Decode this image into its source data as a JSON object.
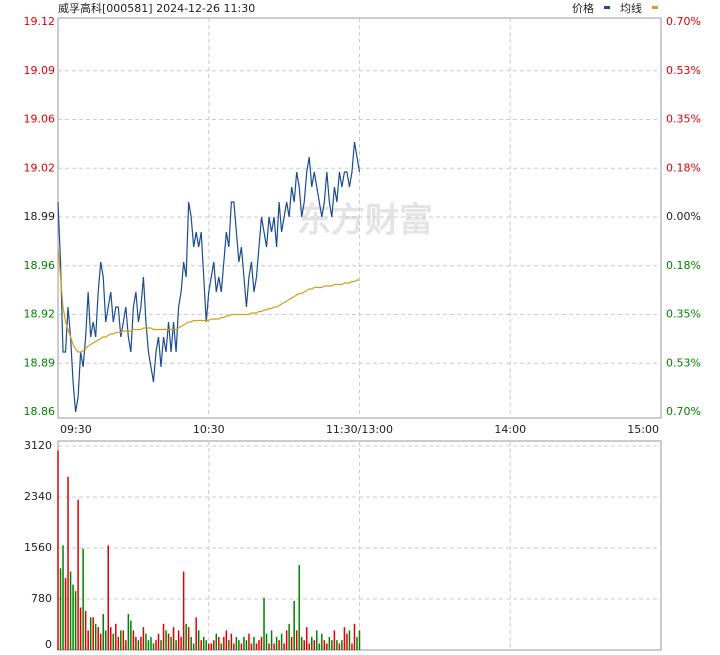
{
  "chart_data": [
    {
      "type": "line",
      "title": "威孚高科[000581] 2024-12-26 11:30",
      "watermark": "东方财富",
      "legend": "top-right",
      "grid": true,
      "up_color": "#e00000",
      "down_color": "#008000",
      "xlim": [
        0,
        240
      ],
      "xticks": [
        {
          "value": 0,
          "label": "09:30"
        },
        {
          "value": 60,
          "label": "10:30"
        },
        {
          "value": 120,
          "label": "11:30/13:00"
        },
        {
          "value": 180,
          "label": "14:00"
        },
        {
          "value": 240,
          "label": "15:00"
        }
      ],
      "ylim": [
        18.86,
        19.12
      ],
      "yticks": [
        {
          "value": 19.12,
          "label": "19.12"
        },
        {
          "value": 19.0875,
          "label": "19.09"
        },
        {
          "value": 19.055,
          "label": "19.06"
        },
        {
          "value": 19.0225,
          "label": "19.02"
        },
        {
          "value": 18.99,
          "label": "18.99"
        },
        {
          "value": 18.9575,
          "label": "18.96"
        },
        {
          "value": 18.925,
          "label": "18.92"
        },
        {
          "value": 18.8925,
          "label": "18.89"
        },
        {
          "value": 18.86,
          "label": "18.86"
        }
      ],
      "y2lim": [
        -0.7,
        0.7
      ],
      "y2ticks": [
        {
          "value": 0.7,
          "label": "0.70%"
        },
        {
          "value": 0.525,
          "label": "0.53%"
        },
        {
          "value": 0.35,
          "label": "0.35%"
        },
        {
          "value": 0.175,
          "label": "0.18%"
        },
        {
          "value": 0,
          "label": "0.00%"
        },
        {
          "value": -0.175,
          "label": "0.18%"
        },
        {
          "value": -0.35,
          "label": "0.35%"
        },
        {
          "value": -0.525,
          "label": "0.53%"
        },
        {
          "value": -0.7,
          "label": "0.70%"
        }
      ],
      "series": [
        {
          "name": "价格",
          "color": "#1a4d8f",
          "values": [
            19.0,
            18.96,
            18.9,
            18.9,
            18.93,
            18.91,
            18.88,
            18.86,
            18.87,
            18.9,
            18.89,
            18.91,
            18.94,
            18.91,
            18.92,
            18.91,
            18.94,
            18.96,
            18.95,
            18.92,
            18.93,
            18.94,
            18.92,
            18.93,
            18.93,
            18.91,
            18.92,
            18.93,
            18.91,
            18.9,
            18.93,
            18.94,
            18.92,
            18.93,
            18.95,
            18.92,
            18.9,
            18.89,
            18.88,
            18.9,
            18.91,
            18.89,
            18.91,
            18.9,
            18.92,
            18.9,
            18.92,
            18.9,
            18.93,
            18.94,
            18.96,
            18.95,
            19.0,
            18.99,
            18.97,
            18.98,
            18.97,
            18.98,
            18.95,
            18.92,
            18.94,
            18.95,
            18.96,
            18.94,
            18.95,
            18.94,
            18.96,
            18.98,
            18.97,
            19.0,
            19.0,
            18.98,
            18.96,
            18.97,
            18.95,
            18.93,
            18.95,
            18.96,
            18.94,
            18.95,
            18.97,
            18.99,
            18.98,
            18.97,
            18.99,
            18.98,
            18.99,
            18.97,
            19.0,
            18.98,
            18.99,
            19.0,
            18.99,
            19.01,
            19.0,
            19.02,
            19.01,
            18.99,
            19.0,
            19.02,
            19.03,
            19.01,
            19.02,
            19.01,
            19.0,
            18.99,
            19.0,
            19.02,
            19.0,
            18.99,
            19.01,
            19.0,
            19.02,
            19.01,
            19.02,
            19.02,
            19.01,
            19.02,
            19.04,
            19.03,
            19.02
          ]
        },
        {
          "name": "均线",
          "color": "#d89b1e",
          "values": [
            18.97,
            18.95,
            18.93,
            18.92,
            18.915,
            18.91,
            18.905,
            18.902,
            18.9,
            18.9,
            18.901,
            18.902,
            18.904,
            18.905,
            18.906,
            18.907,
            18.908,
            18.909,
            18.91,
            18.91,
            18.911,
            18.912,
            18.912,
            18.913,
            18.913,
            18.913,
            18.914,
            18.914,
            18.914,
            18.914,
            18.915,
            18.915,
            18.915,
            18.915,
            18.916,
            18.916,
            18.916,
            18.916,
            18.915,
            18.915,
            18.915,
            18.915,
            18.915,
            18.915,
            18.915,
            18.915,
            18.915,
            18.915,
            18.916,
            18.917,
            18.918,
            18.919,
            18.92,
            18.92,
            18.921,
            18.921,
            18.921,
            18.921,
            18.921,
            18.921,
            18.921,
            18.922,
            18.922,
            18.922,
            18.922,
            18.923,
            18.923,
            18.924,
            18.924,
            18.925,
            18.925,
            18.925,
            18.925,
            18.925,
            18.925,
            18.925,
            18.925,
            18.926,
            18.926,
            18.926,
            18.927,
            18.927,
            18.928,
            18.928,
            18.929,
            18.929,
            18.93,
            18.93,
            18.931,
            18.932,
            18.933,
            18.934,
            18.935,
            18.936,
            18.937,
            18.938,
            18.939,
            18.939,
            18.94,
            18.941,
            18.942,
            18.942,
            18.943,
            18.943,
            18.943,
            18.943,
            18.944,
            18.944,
            18.944,
            18.944,
            18.945,
            18.945,
            18.945,
            18.945,
            18.946,
            18.946,
            18.946,
            18.947,
            18.947,
            18.948,
            18.948
          ]
        }
      ]
    },
    {
      "type": "bar",
      "grid": true,
      "up_color": "#e00000",
      "down_color": "#008000",
      "ylim": [
        0,
        3120
      ],
      "yticks": [
        0,
        780,
        1560,
        2340,
        3120
      ],
      "values": [
        3050,
        1250,
        1600,
        1100,
        2650,
        1200,
        1000,
        900,
        2300,
        650,
        1550,
        600,
        300,
        500,
        500,
        400,
        350,
        250,
        550,
        300,
        1600,
        350,
        250,
        400,
        200,
        300,
        300,
        150,
        550,
        450,
        300,
        200,
        150,
        200,
        350,
        250,
        150,
        200,
        100,
        150,
        250,
        150,
        400,
        300,
        250,
        200,
        350,
        150,
        300,
        200,
        1200,
        400,
        350,
        200,
        100,
        500,
        300,
        150,
        200,
        150,
        100,
        100,
        150,
        250,
        200,
        100,
        200,
        300,
        150,
        250,
        100,
        200,
        150,
        100,
        200,
        150,
        250,
        100,
        200,
        100,
        150,
        200,
        800,
        250,
        100,
        300,
        100,
        200,
        150,
        250,
        100,
        300,
        400,
        200,
        750,
        300,
        1300,
        200,
        150,
        350,
        100,
        200,
        150,
        300,
        100,
        250,
        150,
        100,
        200,
        150,
        300,
        150,
        100,
        150,
        350,
        250,
        300,
        100,
        400,
        200,
        300
      ]
    }
  ]
}
